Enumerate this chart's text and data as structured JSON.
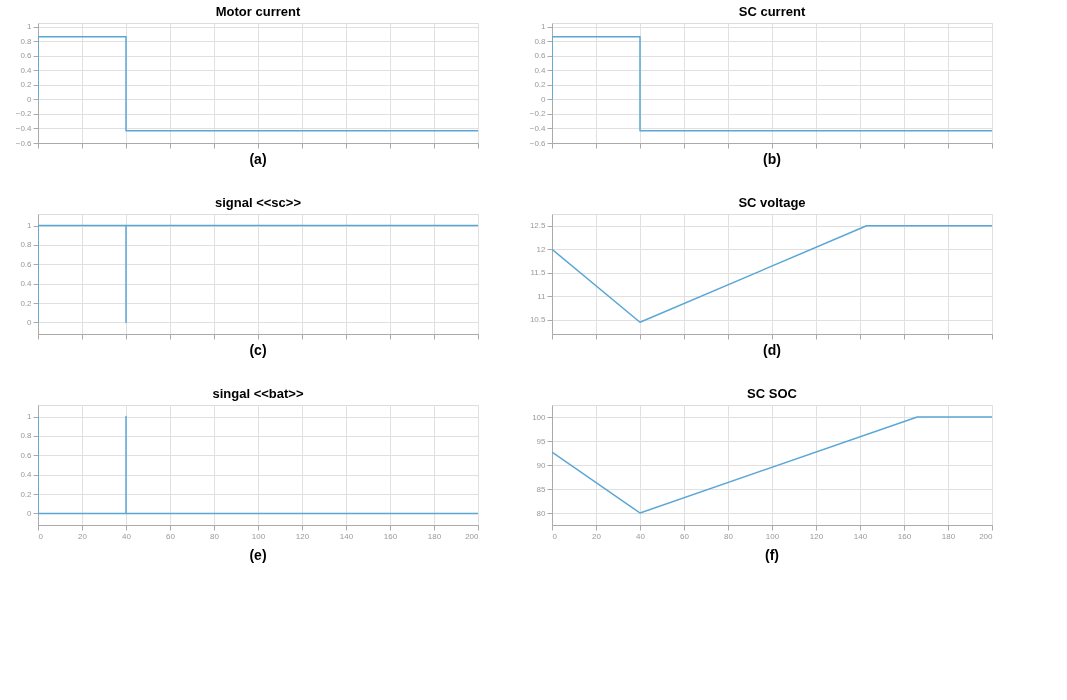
{
  "chart_data": [
    {
      "type": "line",
      "title": "Motor current",
      "annotations": [
        "(a)"
      ],
      "tick_labels": "y",
      "grid": true,
      "xlim": [
        0,
        200
      ],
      "xticks": [
        0,
        20,
        40,
        60,
        80,
        100,
        120,
        140,
        160,
        180,
        200
      ],
      "ylim": [
        -0.6,
        1.05
      ],
      "yticks": [
        -0.6,
        -0.4,
        -0.2,
        0,
        0.2,
        0.4,
        0.6,
        0.8,
        1
      ],
      "x": [
        0,
        0,
        40,
        40,
        200
      ],
      "series": [
        {
          "color": "#5aa7d6",
          "values": [
            0,
            0.86,
            0.86,
            -0.43,
            -0.43
          ]
        }
      ]
    },
    {
      "type": "line",
      "title": "SC current",
      "annotations": [
        "(b)"
      ],
      "tick_labels": "y",
      "grid": true,
      "xlim": [
        0,
        200
      ],
      "xticks": [
        0,
        20,
        40,
        60,
        80,
        100,
        120,
        140,
        160,
        180,
        200
      ],
      "ylim": [
        -0.6,
        1.05
      ],
      "yticks": [
        -0.6,
        -0.4,
        -0.2,
        0,
        0.2,
        0.4,
        0.6,
        0.8,
        1
      ],
      "x": [
        0,
        0,
        40,
        40,
        200
      ],
      "series": [
        {
          "color": "#5aa7d6",
          "values": [
            0,
            0.86,
            0.86,
            -0.43,
            -0.43
          ]
        }
      ]
    },
    {
      "type": "line",
      "title": "signal <<sc>>",
      "annotations": [
        "(c)"
      ],
      "tick_labels": "y",
      "grid": true,
      "xlim": [
        0,
        200
      ],
      "xticks": [
        0,
        20,
        40,
        60,
        80,
        100,
        120,
        140,
        160,
        180,
        200
      ],
      "ylim": [
        -0.12,
        1.12
      ],
      "yticks": [
        0,
        0.2,
        0.4,
        0.6,
        0.8,
        1
      ],
      "x": [
        0,
        0,
        40,
        40,
        40,
        200
      ],
      "series": [
        {
          "color": "#5aa7d6",
          "values": [
            0,
            1,
            1,
            0,
            1,
            1
          ]
        }
      ]
    },
    {
      "type": "line",
      "title": "SC voltage",
      "annotations": [
        "(d)"
      ],
      "tick_labels": "y",
      "grid": true,
      "xlim": [
        0,
        200
      ],
      "xticks": [
        0,
        20,
        40,
        60,
        80,
        100,
        120,
        140,
        160,
        180,
        200
      ],
      "ylim": [
        10.2,
        12.75
      ],
      "yticks": [
        10.5,
        11,
        11.5,
        12,
        12.5
      ],
      "x": [
        0,
        40,
        143,
        200
      ],
      "series": [
        {
          "color": "#5aa7d6",
          "values": [
            12,
            10.45,
            12.5,
            12.5
          ]
        }
      ]
    },
    {
      "type": "line",
      "title": "singal <<bat>>",
      "annotations": [
        "(e)"
      ],
      "grid": true,
      "xlim": [
        0,
        200
      ],
      "xticks": [
        0,
        20,
        40,
        60,
        80,
        100,
        120,
        140,
        160,
        180,
        200
      ],
      "ylim": [
        -0.12,
        1.12
      ],
      "yticks": [
        0,
        0.2,
        0.4,
        0.6,
        0.8,
        1
      ],
      "x": [
        0,
        0,
        40,
        40,
        40,
        200
      ],
      "series": [
        {
          "color": "#5aa7d6",
          "values": [
            1,
            0,
            0,
            1,
            0,
            0
          ]
        }
      ]
    },
    {
      "type": "line",
      "title": "SC  SOC",
      "annotations": [
        "(f)"
      ],
      "grid": true,
      "xlim": [
        0,
        200
      ],
      "xticks": [
        0,
        20,
        40,
        60,
        80,
        100,
        120,
        140,
        160,
        180,
        200
      ],
      "ylim": [
        77.5,
        102.5
      ],
      "yticks": [
        80,
        85,
        90,
        95,
        100
      ],
      "x": [
        0,
        40,
        166,
        200
      ],
      "series": [
        {
          "color": "#5aa7d6",
          "values": [
            92.7,
            80,
            100,
            100
          ]
        }
      ]
    }
  ]
}
